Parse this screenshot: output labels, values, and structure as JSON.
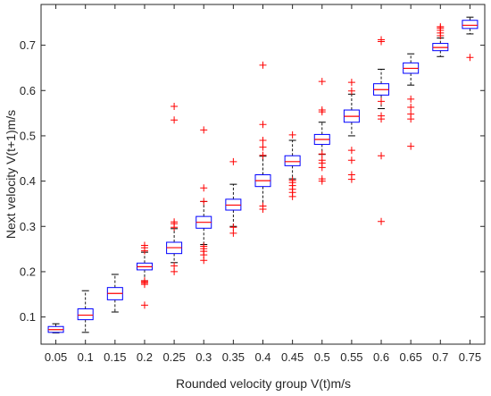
{
  "chart_data": {
    "type": "box",
    "title": "",
    "xlabel": "Rounded velocity group V(t)m/s",
    "ylabel": "Next velocity V(t+1)m/s",
    "categories": [
      "0.05",
      "0.1",
      "0.15",
      "0.2",
      "0.25",
      "0.3",
      "0.35",
      "0.4",
      "0.45",
      "0.5",
      "0.55",
      "0.6",
      "0.65",
      "0.7",
      "0.75"
    ],
    "ylim": [
      0.04,
      0.79
    ],
    "yticks": [
      "0.1",
      "0.2",
      "0.3",
      "0.4",
      "0.5",
      "0.6",
      "0.7"
    ],
    "grid": false,
    "colors": {
      "box": "#0000ff",
      "median": "#ff0000",
      "whisker": "#000000",
      "outlier": "#ff0000"
    },
    "boxes": [
      {
        "q1": 0.066,
        "median": 0.072,
        "q3": 0.079,
        "whisker_low": 0.065,
        "whisker_high": 0.085,
        "outliers": []
      },
      {
        "q1": 0.094,
        "median": 0.104,
        "q3": 0.118,
        "whisker_low": 0.066,
        "whisker_high": 0.158,
        "outliers": []
      },
      {
        "q1": 0.138,
        "median": 0.152,
        "q3": 0.165,
        "whisker_low": 0.111,
        "whisker_high": 0.194,
        "outliers": []
      },
      {
        "q1": 0.204,
        "median": 0.211,
        "q3": 0.219,
        "whisker_low": 0.18,
        "whisker_high": 0.243,
        "outliers": [
          0.126,
          0.172,
          0.175,
          0.178,
          0.18,
          0.246,
          0.253,
          0.258
        ]
      },
      {
        "q1": 0.24,
        "median": 0.253,
        "q3": 0.265,
        "whisker_low": 0.22,
        "whisker_high": 0.295,
        "outliers": [
          0.2,
          0.213,
          0.298,
          0.306,
          0.31,
          0.535,
          0.565
        ]
      },
      {
        "q1": 0.296,
        "median": 0.309,
        "q3": 0.322,
        "whisker_low": 0.26,
        "whisker_high": 0.355,
        "outliers": [
          0.225,
          0.237,
          0.245,
          0.251,
          0.256,
          0.355,
          0.385,
          0.513
        ]
      },
      {
        "q1": 0.336,
        "median": 0.347,
        "q3": 0.36,
        "whisker_low": 0.3,
        "whisker_high": 0.393,
        "outliers": [
          0.285,
          0.298,
          0.443
        ]
      },
      {
        "q1": 0.388,
        "median": 0.401,
        "q3": 0.414,
        "whisker_low": 0.345,
        "whisker_high": 0.455,
        "outliers": [
          0.338,
          0.345,
          0.457,
          0.475,
          0.49,
          0.525,
          0.656
        ]
      },
      {
        "q1": 0.434,
        "median": 0.443,
        "q3": 0.456,
        "whisker_low": 0.405,
        "whisker_high": 0.49,
        "outliers": [
          0.366,
          0.375,
          0.382,
          0.39,
          0.397,
          0.402,
          0.502
        ]
      },
      {
        "q1": 0.481,
        "median": 0.492,
        "q3": 0.503,
        "whisker_low": 0.459,
        "whisker_high": 0.53,
        "outliers": [
          0.4,
          0.405,
          0.43,
          0.44,
          0.446,
          0.46,
          0.553,
          0.557,
          0.62
        ]
      },
      {
        "q1": 0.53,
        "median": 0.543,
        "q3": 0.557,
        "whisker_low": 0.5,
        "whisker_high": 0.592,
        "outliers": [
          0.404,
          0.414,
          0.446,
          0.468,
          0.599,
          0.618
        ]
      },
      {
        "q1": 0.59,
        "median": 0.602,
        "q3": 0.615,
        "whisker_low": 0.56,
        "whisker_high": 0.647,
        "outliers": [
          0.311,
          0.456,
          0.537,
          0.544,
          0.576,
          0.708,
          0.712
        ]
      },
      {
        "q1": 0.638,
        "median": 0.649,
        "q3": 0.661,
        "whisker_low": 0.612,
        "whisker_high": 0.681,
        "outliers": [
          0.477,
          0.537,
          0.548,
          0.563,
          0.581
        ]
      },
      {
        "q1": 0.688,
        "median": 0.695,
        "q3": 0.704,
        "whisker_low": 0.675,
        "whisker_high": 0.716,
        "outliers": [
          0.721,
          0.727,
          0.733,
          0.738,
          0.741
        ]
      },
      {
        "q1": 0.737,
        "median": 0.744,
        "q3": 0.755,
        "whisker_low": 0.725,
        "whisker_high": 0.762,
        "outliers": [
          0.673
        ]
      }
    ]
  }
}
